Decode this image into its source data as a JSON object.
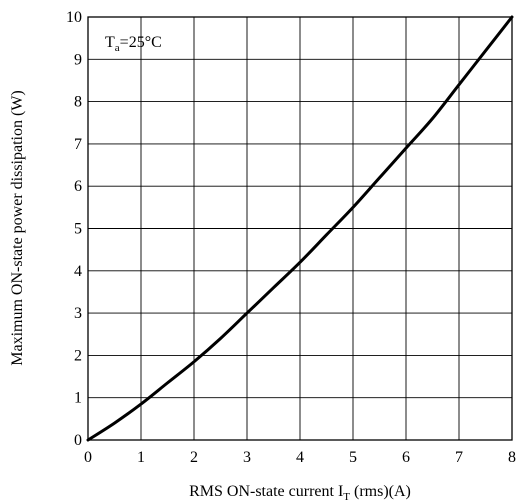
{
  "chart_data": {
    "type": "line",
    "title": "",
    "annotation": {
      "base": "T",
      "sub": "a",
      "rest": "=25°C"
    },
    "xlabel": {
      "base": "RMS ON-state current I",
      "sub": "T",
      "rest": " (rms)(A)"
    },
    "ylabel": "Maximum ON-state power dissipation (W)",
    "xlim": [
      0,
      8
    ],
    "ylim": [
      0,
      10
    ],
    "xticks": [
      "0",
      "1",
      "2",
      "3",
      "4",
      "5",
      "6",
      "7",
      "8"
    ],
    "yticks": [
      "0",
      "1",
      "2",
      "3",
      "4",
      "5",
      "6",
      "7",
      "8",
      "9",
      "10"
    ],
    "grid": true,
    "series": [
      {
        "x": [
          0,
          0.5,
          1,
          1.5,
          2,
          2.5,
          3,
          3.5,
          4,
          4.5,
          5,
          5.5,
          6,
          6.5,
          7,
          7.5,
          8
        ],
        "values": [
          0,
          0.4,
          0.85,
          1.35,
          1.85,
          2.4,
          3.0,
          3.6,
          4.2,
          4.85,
          5.5,
          6.2,
          6.9,
          7.6,
          8.4,
          9.2,
          10.0
        ]
      }
    ]
  }
}
